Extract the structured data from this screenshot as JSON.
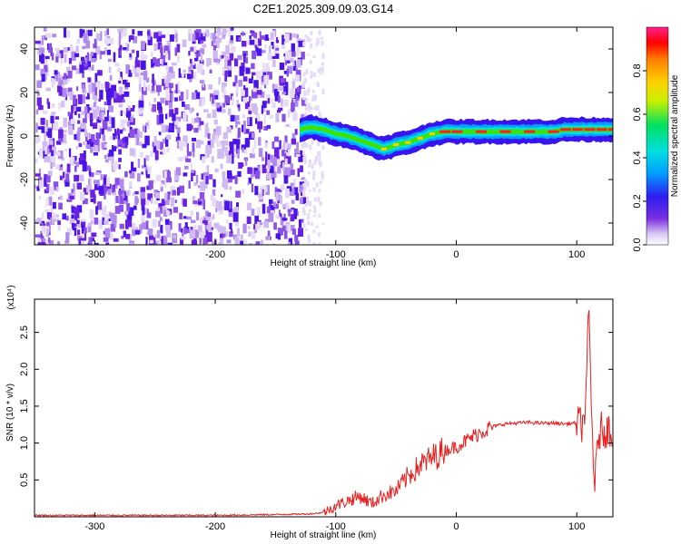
{
  "title": "C2E1.2025.309.09.03.G14",
  "chart_data": [
    {
      "type": "heatmap",
      "name": "spectrogram",
      "xlabel": "Height of straight line (km)",
      "ylabel": "Frequency (Hz)",
      "xlim": [
        -350,
        130
      ],
      "ylim": [
        -50,
        50
      ],
      "x_ticks": [
        -300,
        -200,
        -100,
        0,
        100
      ],
      "x_tick_labels": [
        "-300",
        "-200",
        "-100",
        "0",
        "100"
      ],
      "y_ticks": [
        -40,
        -20,
        0,
        20,
        40
      ],
      "y_tick_labels": [
        "-40",
        "-20",
        "0",
        "20",
        "40"
      ],
      "ridge": {
        "description": "dominant frequency track",
        "x": [
          -130,
          -120,
          -110,
          -100,
          -90,
          -80,
          -70,
          -60,
          -50,
          -40,
          -30,
          -20,
          -10,
          0,
          20,
          40,
          60,
          80,
          90,
          100,
          110,
          120,
          130
        ],
        "y": [
          3,
          4,
          3,
          1,
          0,
          -2,
          -4,
          -6,
          -4,
          -3,
          -1,
          1,
          2,
          2,
          2,
          2,
          2,
          2,
          3,
          3,
          3,
          3,
          3
        ]
      },
      "colorbar": {
        "label": "Normalized spectral amplitude",
        "range": [
          0,
          1
        ],
        "ticks": [
          0.0,
          0.2,
          0.4,
          0.6,
          0.8
        ],
        "tick_labels": [
          "0.0",
          "0.2",
          "0.4",
          "0.6",
          "0.8"
        ],
        "colors": [
          "#ffffff",
          "#d9c8f5",
          "#7b2fe0",
          "#2d1cf0",
          "#00a0ff",
          "#00e0e0",
          "#00e060",
          "#c8f000",
          "#ffd000",
          "#ff8000",
          "#ff0000",
          "#ff2090"
        ]
      }
    },
    {
      "type": "line",
      "name": "snr",
      "xlabel": "Height of straight line (km)",
      "ylabel": "SNR (10 * v/v)",
      "y_scale_label": "(x10⁴)",
      "xlim": [
        -350,
        130
      ],
      "ylim": [
        0,
        2.95
      ],
      "x_ticks": [
        -300,
        -200,
        -100,
        0,
        100
      ],
      "x_tick_labels": [
        "-300",
        "-200",
        "-100",
        "0",
        "100"
      ],
      "y_ticks": [
        0.5,
        1.0,
        1.5,
        2.0,
        2.5
      ],
      "y_tick_labels": [
        "0.5",
        "1.0",
        "1.5",
        "2.0",
        "2.5"
      ],
      "series": [
        {
          "name": "SNR",
          "color": "#e82020",
          "x": [
            -350,
            -300,
            -250,
            -200,
            -150,
            -120,
            -110,
            -100,
            -90,
            -80,
            -70,
            -60,
            -50,
            -40,
            -30,
            -20,
            -10,
            0,
            10,
            20,
            30,
            40,
            50,
            60,
            70,
            80,
            90,
            100,
            105,
            108,
            110,
            112,
            115,
            118,
            120,
            125,
            130
          ],
          "y": [
            0.02,
            0.02,
            0.02,
            0.02,
            0.03,
            0.04,
            0.06,
            0.15,
            0.22,
            0.28,
            0.18,
            0.3,
            0.35,
            0.55,
            0.7,
            0.8,
            0.9,
            0.95,
            1.05,
            1.15,
            1.22,
            1.26,
            1.27,
            1.28,
            1.27,
            1.27,
            1.26,
            1.27,
            1.25,
            1.6,
            2.95,
            1.5,
            0.4,
            1.1,
            1.18,
            1.18,
            1.18
          ]
        }
      ]
    }
  ]
}
